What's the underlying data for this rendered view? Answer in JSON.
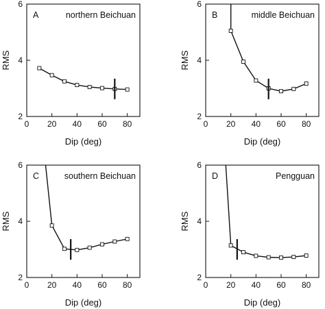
{
  "chart_data": [
    {
      "type": "line",
      "panel_letter": "A",
      "title": "northern Beichuan",
      "xlabel": "Dip (deg)",
      "ylabel": "RMS",
      "xlim": [
        0,
        90
      ],
      "ylim": [
        2,
        6
      ],
      "x_ticks": [
        "0",
        "20",
        "40",
        "60",
        "80"
      ],
      "y_ticks": [
        "2",
        "4",
        "6"
      ],
      "series": [
        {
          "x": [
            10,
            20,
            30,
            40,
            50,
            60,
            70,
            80
          ],
          "y": [
            3.72,
            3.47,
            3.25,
            3.12,
            3.05,
            3.01,
            2.98,
            2.96
          ]
        }
      ],
      "best_fit_dip": 70,
      "best_fit_rms": 2.98
    },
    {
      "type": "line",
      "panel_letter": "B",
      "title": "middle Beichuan",
      "xlabel": "Dip (deg)",
      "ylabel": "RMS",
      "xlim": [
        0,
        90
      ],
      "ylim": [
        2,
        6
      ],
      "x_ticks": [
        "0",
        "20",
        "40",
        "60",
        "80"
      ],
      "y_ticks": [
        "2",
        "4",
        "6"
      ],
      "series": [
        {
          "x": [
            20,
            30,
            40,
            50,
            60,
            70,
            80
          ],
          "y": [
            5.05,
            3.95,
            3.28,
            3.0,
            2.9,
            2.98,
            3.17
          ],
          "leading_segment_from": [
            20,
            6.0
          ]
        }
      ],
      "best_fit_dip": 50,
      "best_fit_rms": 2.98
    },
    {
      "type": "line",
      "panel_letter": "C",
      "title": "southern Beichuan",
      "xlabel": "Dip (deg)",
      "ylabel": "RMS",
      "xlim": [
        0,
        90
      ],
      "ylim": [
        2,
        6
      ],
      "x_ticks": [
        "0",
        "20",
        "40",
        "60",
        "80"
      ],
      "y_ticks": [
        "2",
        "4",
        "6"
      ],
      "series": [
        {
          "x": [
            20,
            30,
            40,
            50,
            60,
            70,
            80
          ],
          "y": [
            3.85,
            3.02,
            2.98,
            3.06,
            3.18,
            3.28,
            3.37
          ],
          "leading_segment_from": [
            15,
            6.0
          ]
        }
      ],
      "best_fit_dip": 35,
      "best_fit_rms": 3.0
    },
    {
      "type": "line",
      "panel_letter": "D",
      "title": "Pengguan",
      "xlabel": "Dip (deg)",
      "ylabel": "RMS",
      "xlim": [
        0,
        90
      ],
      "ylim": [
        2,
        6
      ],
      "x_ticks": [
        "0",
        "20",
        "40",
        "60",
        "80"
      ],
      "y_ticks": [
        "2",
        "4",
        "6"
      ],
      "series": [
        {
          "x": [
            20,
            30,
            40,
            50,
            60,
            70,
            80
          ],
          "y": [
            3.14,
            2.9,
            2.77,
            2.72,
            2.71,
            2.73,
            2.78
          ],
          "leading_segment_from": [
            16,
            6.0
          ]
        }
      ],
      "best_fit_dip": 25,
      "best_fit_rms": 3.0
    }
  ]
}
